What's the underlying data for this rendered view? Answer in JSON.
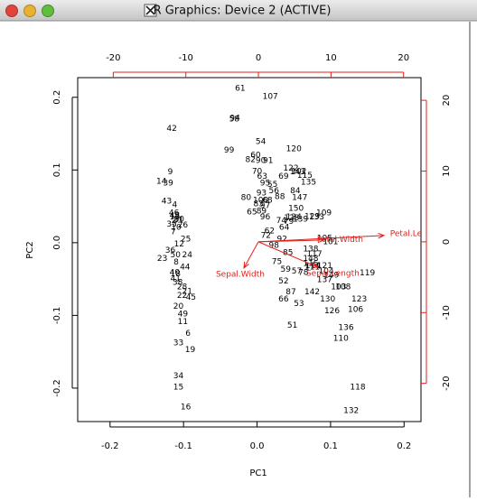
{
  "window_title": "R Graphics: Device 2 (ACTIVE)",
  "chart_data": {
    "type": "biplot",
    "xlabel": "PC1",
    "ylabel": "PC2",
    "xlim": [
      -0.244,
      0.223
    ],
    "ylim": [
      -0.246,
      0.227
    ],
    "xticks": [
      -0.2,
      -0.1,
      {
        "value": 0,
        "label": "0.0"
      },
      0.1,
      0.2
    ],
    "yticks": [
      -0.2,
      -0.1,
      {
        "value": 0,
        "label": "0.0"
      },
      0.1,
      0.2
    ],
    "x2lim": [
      -24.9,
      22.4
    ],
    "y2lim": [
      -25.4,
      23.2
    ],
    "x2ticks": [
      -20,
      -10,
      0,
      10,
      20
    ],
    "y2ticks": [
      -20,
      -10,
      0,
      10,
      20
    ],
    "axis_color": "#e0201c",
    "points": {
      "color": "#000000",
      "labels": [
        "61",
        "107",
        "58",
        "94",
        "42",
        "54",
        "99",
        "120",
        "60",
        "82",
        "90",
        "91",
        "9",
        "14",
        "39",
        "122",
        "143",
        "102",
        "115",
        "69",
        "70",
        "63",
        "95",
        "55",
        "135",
        "84",
        "56",
        "93",
        "88",
        "147",
        "43",
        "4",
        "80",
        "100",
        "68",
        "97",
        "83",
        "89",
        "150",
        "65",
        "96",
        "46",
        "48",
        "30",
        "13",
        "2",
        "31",
        "109",
        "128",
        "139",
        "124",
        "129",
        "133",
        "74",
        "79",
        "64",
        "92",
        "62",
        "72",
        "35",
        "26",
        "10",
        "7",
        "25",
        "12",
        "105",
        "101",
        "36",
        "50",
        "24",
        "23",
        "8",
        "44",
        "40",
        "98",
        "85",
        "138",
        "117",
        "148",
        "116",
        "111",
        "104",
        "75",
        "59",
        "57",
        "78",
        "114",
        "121",
        "119",
        "18",
        "41",
        "38",
        "28",
        "21",
        "22",
        "45",
        "52",
        "137",
        "149",
        "103",
        "108",
        "142",
        "87",
        "66",
        "53",
        "20",
        "49",
        "11",
        "130",
        "123",
        "126",
        "106",
        "51",
        "136",
        "110",
        "6",
        "33",
        "19",
        "34",
        "15",
        "16",
        "118",
        "132"
      ],
      "x": [
        -0.023,
        0.018,
        -0.031,
        -0.03,
        -0.116,
        0.005,
        -0.038,
        0.05,
        -0.002,
        -0.009,
        0.005,
        0.015,
        -0.118,
        -0.13,
        -0.121,
        0.046,
        0.055,
        0.057,
        0.065,
        0.036,
        0.0,
        0.007,
        0.011,
        0.021,
        0.07,
        0.052,
        0.023,
        0.006,
        0.031,
        0.058,
        -0.123,
        -0.112,
        -0.015,
        0.005,
        0.014,
        0.011,
        0.002,
        0.006,
        0.053,
        -0.007,
        0.011,
        -0.113,
        -0.112,
        -0.106,
        -0.112,
        -0.113,
        -0.107,
        0.091,
        0.047,
        0.059,
        0.05,
        0.075,
        0.081,
        0.033,
        0.043,
        0.037,
        0.034,
        0.017,
        0.012,
        -0.116,
        -0.101,
        -0.11,
        -0.114,
        -0.097,
        -0.106,
        0.092,
        0.1,
        -0.118,
        -0.111,
        -0.095,
        -0.129,
        -0.11,
        -0.098,
        -0.112,
        0.023,
        0.042,
        0.073,
        0.078,
        0.073,
        0.073,
        0.075,
        0.094,
        0.027,
        0.039,
        0.054,
        0.063,
        0.076,
        0.092,
        0.15,
        -0.111,
        -0.111,
        -0.108,
        -0.102,
        -0.095,
        -0.102,
        -0.09,
        0.036,
        0.092,
        0.101,
        0.111,
        0.117,
        0.075,
        0.046,
        0.036,
        0.057,
        -0.107,
        -0.101,
        -0.101,
        0.096,
        0.139,
        0.102,
        0.134,
        0.048,
        0.121,
        0.114,
        -0.094,
        -0.107,
        -0.091,
        -0.107,
        -0.107,
        -0.097,
        0.137,
        0.128
      ],
      "y": [
        0.212,
        0.201,
        0.17,
        0.171,
        0.157,
        0.139,
        0.127,
        0.129,
        0.12,
        0.114,
        0.113,
        0.113,
        0.097,
        0.084,
        0.082,
        0.102,
        0.097,
        0.098,
        0.092,
        0.091,
        0.098,
        0.091,
        0.082,
        0.08,
        0.083,
        0.071,
        0.071,
        0.068,
        0.063,
        0.062,
        0.057,
        0.052,
        0.062,
        0.058,
        0.058,
        0.051,
        0.053,
        0.043,
        0.047,
        0.042,
        0.035,
        0.041,
        0.037,
        0.032,
        0.035,
        0.03,
        0.031,
        0.041,
        0.034,
        0.032,
        0.035,
        0.036,
        0.035,
        0.03,
        0.029,
        0.021,
        0.005,
        0.016,
        0.01,
        0.025,
        0.024,
        0.021,
        0.015,
        0.005,
        -0.002,
        0.006,
        0.001,
        -0.011,
        -0.017,
        -0.017,
        -0.022,
        -0.027,
        -0.034,
        -0.041,
        -0.004,
        -0.014,
        -0.009,
        -0.016,
        -0.022,
        -0.029,
        -0.034,
        -0.039,
        -0.026,
        -0.037,
        -0.039,
        -0.041,
        -0.032,
        -0.032,
        -0.042,
        -0.043,
        -0.05,
        -0.055,
        -0.061,
        -0.067,
        -0.073,
        -0.075,
        -0.053,
        -0.051,
        -0.045,
        -0.061,
        -0.061,
        -0.068,
        -0.068,
        -0.078,
        -0.084,
        -0.088,
        -0.098,
        -0.109,
        -0.078,
        -0.078,
        -0.094,
        -0.092,
        -0.114,
        -0.117,
        -0.132,
        -0.125,
        -0.138,
        -0.147,
        -0.183,
        -0.199,
        -0.226,
        -0.199,
        -0.231
      ]
    },
    "loadings": {
      "color": "#e0201c",
      "labels": [
        "Petal.Length",
        "Petal.Width",
        "Sepal.Width",
        "Sepal.Length"
      ],
      "x": [
        17.3,
        9.0,
        -2.0,
        8.2
      ],
      "y": [
        0.9,
        0.25,
        -3.7,
        -3.6
      ]
    }
  }
}
